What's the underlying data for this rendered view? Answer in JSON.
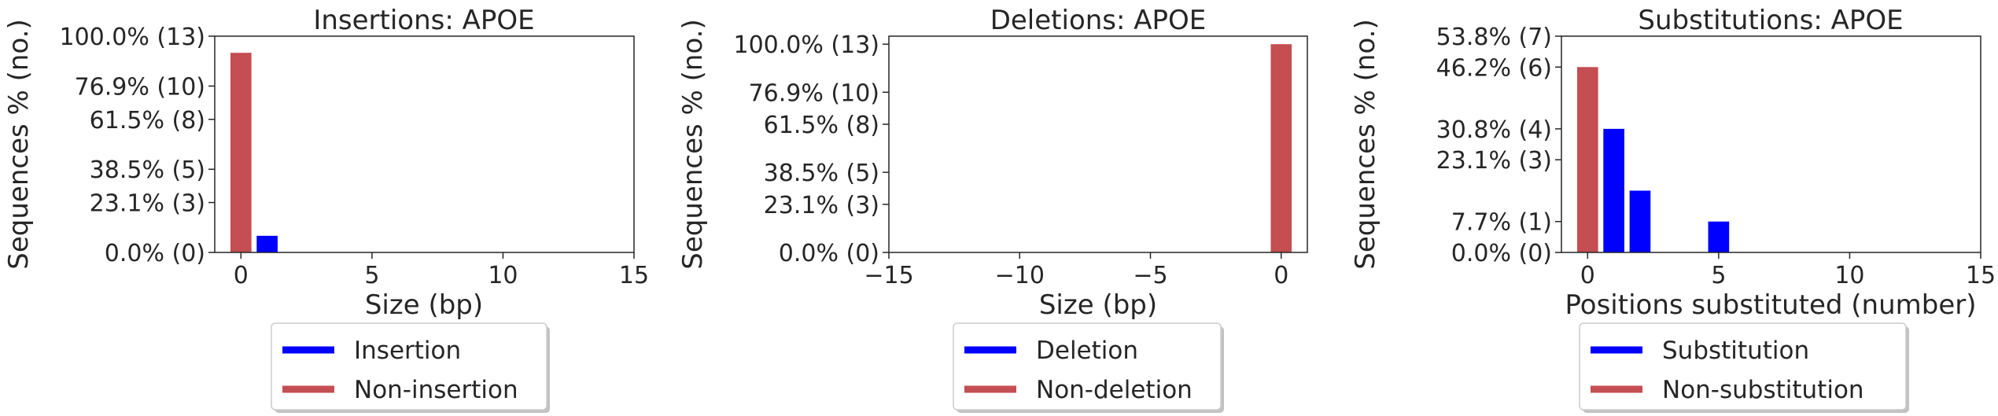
{
  "chart_data": [
    {
      "type": "bar",
      "title": "Insertions: APOE",
      "xlabel": "Size (bp)",
      "ylabel": "Sequences % (no.)",
      "xlim": [
        -1,
        15
      ],
      "ylim": [
        0,
        13
      ],
      "xticks": [
        0,
        5,
        10,
        15
      ],
      "xtick_labels": [
        "0",
        "5",
        "10",
        "15"
      ],
      "yticks": [
        0,
        3,
        5,
        8,
        10,
        13
      ],
      "ytick_labels": [
        "0.0% (0)",
        "23.1% (3)",
        "38.5% (5)",
        "61.5% (8)",
        "76.9% (10)",
        "100.0% (13)"
      ],
      "series": [
        {
          "name": "Insertion",
          "color": "#0000ff",
          "x": [
            1
          ],
          "values": [
            1
          ]
        },
        {
          "name": "Non-insertion",
          "color": "#c44e52",
          "x": [
            0
          ],
          "values": [
            12
          ]
        }
      ],
      "legend": [
        "Insertion",
        "Non-insertion"
      ]
    },
    {
      "type": "bar",
      "title": "Deletions: APOE",
      "xlabel": "Size (bp)",
      "ylabel": "Sequences % (no.)",
      "xlim": [
        -15,
        1
      ],
      "ylim": [
        0,
        13.5
      ],
      "xticks": [
        -15,
        -10,
        -5,
        0
      ],
      "xtick_labels": [
        "−15",
        "−10",
        "−5",
        "0"
      ],
      "yticks": [
        0,
        3,
        5,
        8,
        10,
        13
      ],
      "ytick_labels": [
        "0.0% (0)",
        "23.1% (3)",
        "38.5% (5)",
        "61.5% (8)",
        "76.9% (10)",
        "100.0% (13)"
      ],
      "series": [
        {
          "name": "Deletion",
          "color": "#0000ff",
          "x": [],
          "values": []
        },
        {
          "name": "Non-deletion",
          "color": "#c44e52",
          "x": [
            0
          ],
          "values": [
            13
          ]
        }
      ],
      "legend": [
        "Deletion",
        "Non-deletion"
      ]
    },
    {
      "type": "bar",
      "title": "Substitutions: APOE",
      "xlabel": "Positions substituted (number)",
      "ylabel": "Sequences % (no.)",
      "xlim": [
        -1,
        15
      ],
      "ylim": [
        0,
        7
      ],
      "xticks": [
        0,
        5,
        10,
        15
      ],
      "xtick_labels": [
        "0",
        "5",
        "10",
        "15"
      ],
      "yticks": [
        0,
        1,
        3,
        4,
        6,
        7
      ],
      "ytick_labels": [
        "0.0% (0)",
        "7.7% (1)",
        "23.1% (3)",
        "30.8% (4)",
        "46.2% (6)",
        "53.8% (7)"
      ],
      "series": [
        {
          "name": "Substitution",
          "color": "#0000ff",
          "x": [
            1,
            2,
            5
          ],
          "values": [
            4,
            2,
            1
          ]
        },
        {
          "name": "Non-substitution",
          "color": "#c44e52",
          "x": [
            0
          ],
          "values": [
            6
          ]
        }
      ],
      "legend": [
        "Substitution",
        "Non-substitution"
      ]
    }
  ]
}
